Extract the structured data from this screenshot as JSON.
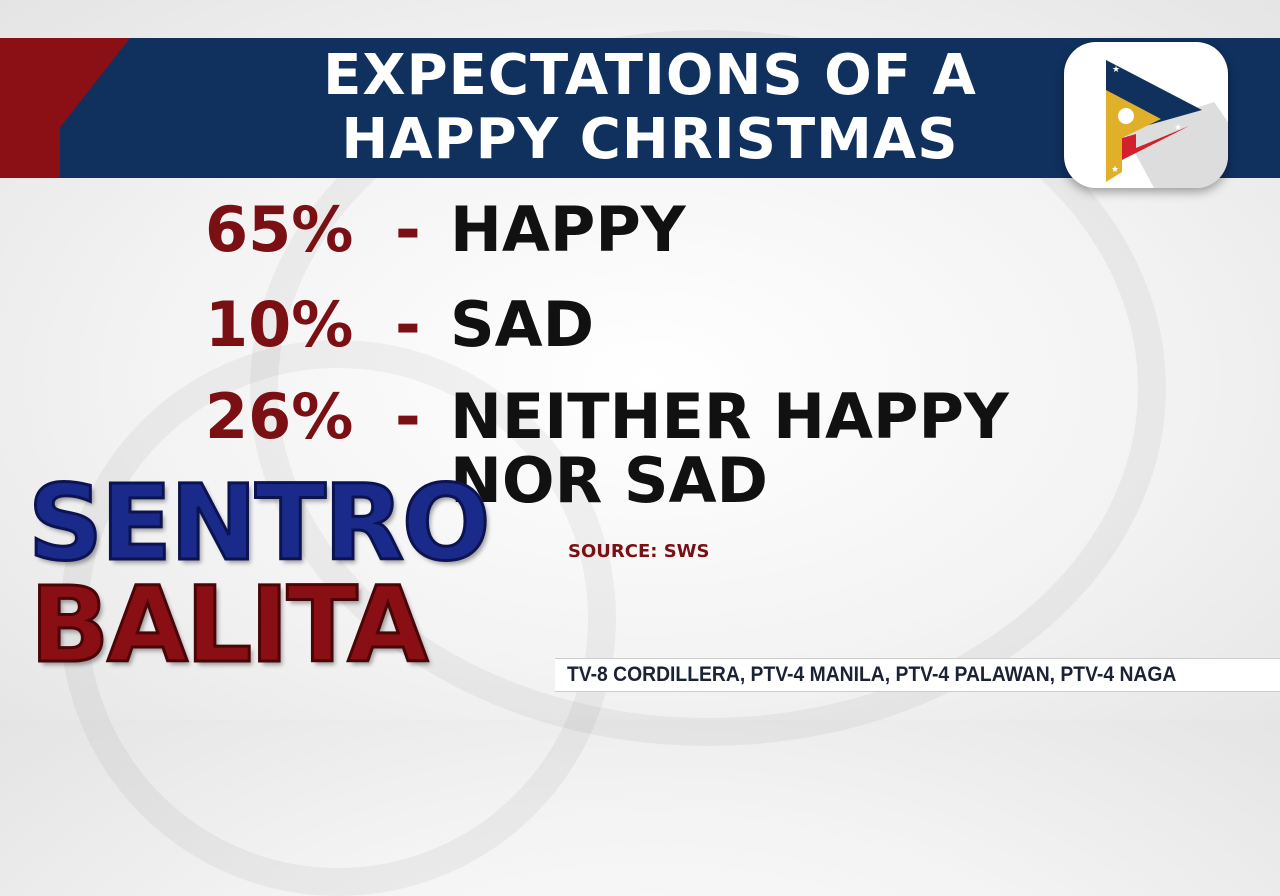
{
  "graphic": {
    "title_line1": "EXPECTATIONS OF A",
    "title_line2": "HAPPY CHRISTMAS",
    "stats": [
      {
        "percent": "65%",
        "separator": "-",
        "label": "HAPPY"
      },
      {
        "percent": "10%",
        "separator": "-",
        "label": "SAD"
      },
      {
        "percent": "26%",
        "separator": "-",
        "label": "NEITHER HAPPY",
        "label_line2": "NOR SAD"
      }
    ],
    "source": "SOURCE: SWS"
  },
  "show": {
    "line1": "SENTRO",
    "line2": "BALITA"
  },
  "logo": {
    "icon": "ptv-flag-play-logo",
    "colors": [
      "#10305e",
      "#e0b02a",
      "#d4202a"
    ]
  },
  "ticker": {
    "text": "TV-8 CORDILLERA, PTV-4 MANILA, PTV-4 PALAWAN, PTV-4 NAGA"
  },
  "colors": {
    "banner": "#10305e",
    "accent_red": "#8a1016",
    "percent": "#7a1014",
    "sentro": "#1a2a8a"
  }
}
